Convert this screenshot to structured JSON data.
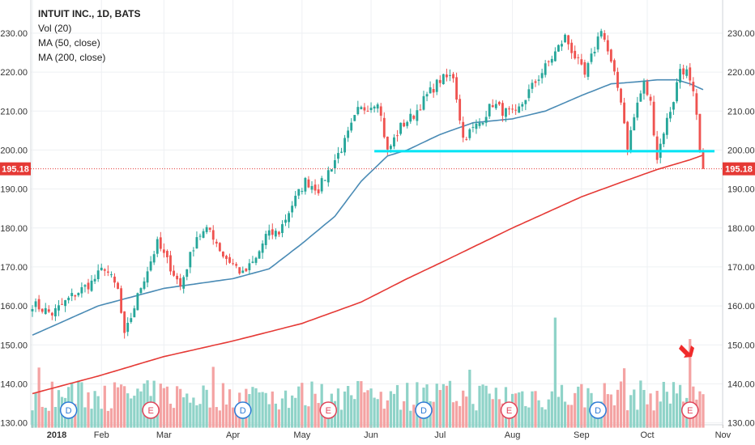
{
  "legend": {
    "title": "INTUIT INC., 1D, BATS",
    "vol": "Vol (20)",
    "ma50": "MA (50, close)",
    "ma200": "MA (200, close)"
  },
  "price_label": "195.18",
  "colors": {
    "up": "#26a69a",
    "down": "#ef5350",
    "ma50": "#4a8bb5",
    "ma200": "#e53935",
    "support": "#00e5f5",
    "vol_up": "#8fd3c8",
    "vol_down": "#f4a3a3",
    "grid": "#eef0f3",
    "arrow": "#f02a2a"
  },
  "chart_data": {
    "type": "candlestick",
    "title": "INTUIT INC., 1D, BATS",
    "y_axis": {
      "ticks": [
        "230.00",
        "220.00",
        "210.00",
        "200.00",
        "190.00",
        "180.00",
        "170.00",
        "160.00",
        "150.00",
        "140.00",
        "130.00"
      ],
      "tick_values": [
        230,
        220,
        210,
        200,
        190,
        180,
        170,
        160,
        150,
        140,
        130
      ],
      "range": [
        129.5,
        238.5
      ],
      "both_sides": true
    },
    "x_axis": {
      "labels": [
        "2018",
        "Feb",
        "Mar",
        "Apr",
        "May",
        "Jun",
        "Jul",
        "Aug",
        "Sep",
        "Oct",
        "Nov"
      ],
      "label_index": [
        0,
        21,
        40,
        61,
        82,
        103,
        124,
        146,
        167,
        187,
        210
      ],
      "bold_label": "2018"
    },
    "last_price": 195.18,
    "support_level": 199.7,
    "support_range_index": [
      104,
      235
    ],
    "grid": true,
    "ohlc_keypoints": [
      [
        0,
        160.5
      ],
      [
        6,
        158
      ],
      [
        12,
        162.5
      ],
      [
        18,
        166
      ],
      [
        22,
        170
      ],
      [
        26,
        164
      ],
      [
        28,
        152
      ],
      [
        33,
        165
      ],
      [
        38,
        176
      ],
      [
        42,
        170
      ],
      [
        45,
        165
      ],
      [
        50,
        178
      ],
      [
        54,
        179.5
      ],
      [
        58,
        173
      ],
      [
        62,
        170
      ],
      [
        64,
        168
      ],
      [
        68,
        172
      ],
      [
        71,
        178
      ],
      [
        75,
        179
      ],
      [
        79,
        186
      ],
      [
        83,
        192
      ],
      [
        87,
        190
      ],
      [
        91,
        196
      ],
      [
        95,
        202
      ],
      [
        99,
        210
      ],
      [
        103,
        211.5
      ],
      [
        105,
        213
      ],
      [
        108,
        199.5
      ],
      [
        112,
        206
      ],
      [
        116,
        209
      ],
      [
        120,
        214
      ],
      [
        124,
        218
      ],
      [
        128,
        219
      ],
      [
        131,
        203
      ],
      [
        136,
        207
      ],
      [
        140,
        212
      ],
      [
        143,
        210
      ],
      [
        147,
        209
      ],
      [
        151,
        215
      ],
      [
        155,
        220
      ],
      [
        159,
        225
      ],
      [
        162,
        229
      ],
      [
        165,
        224
      ],
      [
        168,
        219
      ],
      [
        171,
        226
      ],
      [
        173,
        231.5
      ],
      [
        176,
        222
      ],
      [
        179,
        213
      ],
      [
        181,
        201
      ],
      [
        184,
        212
      ],
      [
        186,
        217
      ],
      [
        188,
        212
      ],
      [
        190,
        198
      ],
      [
        192,
        205
      ],
      [
        195,
        213
      ],
      [
        197,
        221
      ],
      [
        199,
        220
      ],
      [
        201,
        214
      ],
      [
        202,
        208
      ],
      [
        203,
        199
      ],
      [
        204,
        192
      ]
    ],
    "moving_averages": {
      "MA (50, close)": [
        [
          0,
          152.5
        ],
        [
          20,
          160
        ],
        [
          40,
          164.5
        ],
        [
          61,
          167
        ],
        [
          72,
          169.5
        ],
        [
          82,
          176
        ],
        [
          92,
          183
        ],
        [
          100,
          192
        ],
        [
          108,
          198.5
        ],
        [
          114,
          200
        ],
        [
          124,
          204
        ],
        [
          134,
          207
        ],
        [
          146,
          208
        ],
        [
          156,
          210
        ],
        [
          167,
          214
        ],
        [
          176,
          217
        ],
        [
          184,
          217.5
        ],
        [
          190,
          218
        ],
        [
          196,
          218
        ],
        [
          200,
          217
        ],
        [
          204,
          215.5
        ]
      ],
      "MA (200, close)": [
        [
          0,
          137.5
        ],
        [
          20,
          142
        ],
        [
          40,
          147
        ],
        [
          61,
          151
        ],
        [
          82,
          155.5
        ],
        [
          100,
          161
        ],
        [
          114,
          167
        ],
        [
          124,
          171
        ],
        [
          146,
          180
        ],
        [
          167,
          188
        ],
        [
          180,
          192
        ],
        [
          190,
          195
        ],
        [
          200,
          197.5
        ],
        [
          204,
          198.7
        ]
      ]
    },
    "volume": {
      "label": "Vol (20)",
      "baseline_value": 130,
      "spikes": [
        [
          159,
          157
        ],
        [
          200,
          151.5
        ],
        [
          180,
          144
        ]
      ]
    },
    "event_markers": [
      {
        "label": "D",
        "index": 11,
        "type": "dividend"
      },
      {
        "label": "E",
        "index": 36,
        "type": "earnings"
      },
      {
        "label": "D",
        "index": 64,
        "type": "dividend"
      },
      {
        "label": "E",
        "index": 90,
        "type": "earnings"
      },
      {
        "label": "D",
        "index": 119,
        "type": "dividend"
      },
      {
        "label": "E",
        "index": 145,
        "type": "earnings"
      },
      {
        "label": "D",
        "index": 172,
        "type": "dividend"
      },
      {
        "label": "E",
        "index": 200,
        "type": "earnings"
      }
    ]
  }
}
